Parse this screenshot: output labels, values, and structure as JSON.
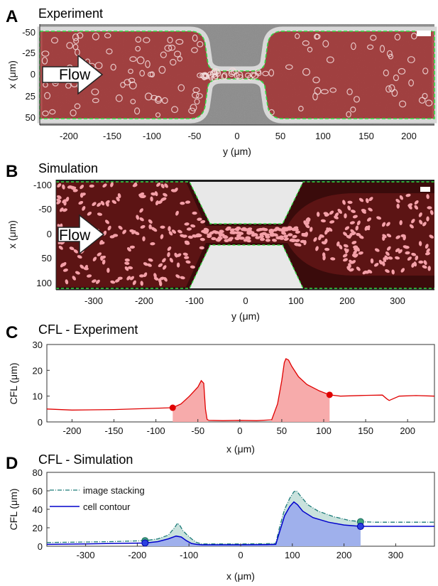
{
  "colors": {
    "channel_red": "#a52a2a",
    "sim_fluid": "#5c1414",
    "sim_cell": "#f4a0a8",
    "experiment_line": "#e00000",
    "experiment_fill": "#f7a6a6",
    "stacking_line": "#1b7a78",
    "stacking_fill": "#c9e2dd",
    "contour_line": "#0000cc",
    "contour_fill": "#9fb0ec",
    "boundary_green": "#33dd44"
  },
  "panels": {
    "A": {
      "letter": "A",
      "title": "Experiment",
      "flow_label": "Flow",
      "xlabel": "y (μm)",
      "ylabel": "x (μm)",
      "xticks": [
        "-200",
        "-150",
        "-100",
        "-50",
        "0",
        "50",
        "100",
        "150",
        "200"
      ],
      "yticks": [
        "-50",
        "-25",
        "0",
        "25",
        "50"
      ]
    },
    "B": {
      "letter": "B",
      "title": "Simulation",
      "flow_label": "Flow",
      "xlabel": "y (μm)",
      "ylabel": "x (μm)",
      "xticks": [
        "-300",
        "-200",
        "-100",
        "0",
        "100",
        "200",
        "300"
      ],
      "yticks": [
        "-100",
        "-50",
        "0",
        "50",
        "100"
      ]
    },
    "C": {
      "letter": "C",
      "title": "CFL - Experiment",
      "xlabel": "x (μm)",
      "ylabel": "CFL (μm)",
      "xticks": [
        "-200",
        "-150",
        "-100",
        "-50",
        "0",
        "50",
        "100",
        "150",
        "200"
      ],
      "yticks": [
        "0",
        "10",
        "20",
        "30"
      ]
    },
    "D": {
      "letter": "D",
      "title": "CFL - Simulation",
      "xlabel": "x (μm)",
      "ylabel": "CFL (μm)",
      "xticks": [
        "-300",
        "-200",
        "-100",
        "0",
        "100",
        "200",
        "300"
      ],
      "yticks": [
        "0",
        "20",
        "40",
        "60",
        "80"
      ],
      "legend": [
        "image stacking",
        "cell contour"
      ]
    }
  },
  "chart_data": [
    {
      "panel": "C",
      "type": "line",
      "title": "CFL - Experiment",
      "xlabel": "x (μm)",
      "ylabel": "CFL (μm)",
      "xlim": [
        -230,
        232
      ],
      "ylim": [
        0,
        30
      ],
      "series": [
        {
          "x": [
            -230,
            -200,
            -150,
            -110,
            -90,
            -80,
            -70,
            -60,
            -50,
            -46,
            -43,
            -41,
            -39,
            -37,
            -20,
            0,
            20,
            38,
            45,
            50,
            53,
            55,
            58,
            62,
            70,
            80,
            95,
            107,
            120,
            150,
            170,
            175,
            178,
            190,
            210,
            232
          ],
          "y": [
            5.0,
            4.6,
            4.8,
            5.2,
            5.4,
            5.5,
            7.0,
            10.0,
            13.5,
            16.0,
            15.0,
            5.0,
            1.0,
            0.6,
            0.5,
            0.6,
            0.5,
            0.8,
            7.0,
            16.0,
            23.0,
            24.5,
            24.0,
            21.5,
            17.5,
            14.5,
            12.0,
            10.5,
            10.0,
            10.3,
            10.4,
            9.0,
            8.3,
            10.0,
            10.2,
            10.0
          ]
        }
      ],
      "shaded_regions": [
        [
          -80,
          -38
        ],
        [
          38,
          107
        ]
      ],
      "markers": [
        {
          "x": -80,
          "y": 5.5
        },
        {
          "x": 107,
          "y": 10.5
        }
      ]
    },
    {
      "panel": "D",
      "type": "line",
      "title": "CFL - Simulation",
      "xlabel": "x (μm)",
      "ylabel": "CFL (μm)",
      "xlim": [
        -375,
        375
      ],
      "ylim": [
        0,
        80
      ],
      "legend_position": "top-left",
      "series": [
        {
          "name": "image stacking",
          "style": "dash-dot",
          "x": [
            -375,
            -300,
            -250,
            -185,
            -160,
            -140,
            -128,
            -122,
            -117,
            -112,
            -105,
            -95,
            -85,
            -75,
            -50,
            0,
            50,
            68,
            75,
            85,
            95,
            103,
            108,
            115,
            130,
            150,
            180,
            210,
            232,
            260,
            300,
            375
          ],
          "y": [
            4.0,
            4.5,
            5.0,
            6.0,
            8.0,
            12.0,
            20.0,
            25.0,
            22.0,
            17.0,
            13.0,
            8.0,
            4.0,
            2.5,
            2.5,
            2.5,
            2.8,
            3.0,
            20.0,
            40.0,
            52.0,
            59.0,
            60.0,
            55.0,
            45.0,
            38.0,
            32.0,
            28.0,
            26.5,
            26.0,
            26.0,
            26.0
          ]
        },
        {
          "name": "cell contour",
          "style": "solid",
          "x": [
            -375,
            -300,
            -250,
            -185,
            -160,
            -140,
            -125,
            -115,
            -105,
            -95,
            -85,
            -75,
            -50,
            0,
            50,
            68,
            75,
            85,
            95,
            103,
            110,
            120,
            140,
            170,
            200,
            232,
            260,
            300,
            375
          ],
          "y": [
            2.0,
            2.5,
            3.0,
            3.5,
            5.0,
            8.0,
            11.0,
            10.0,
            6.0,
            3.0,
            2.0,
            1.5,
            1.5,
            1.5,
            1.8,
            2.0,
            15.0,
            33.0,
            43.0,
            48.0,
            45.0,
            38.0,
            31.0,
            26.0,
            23.0,
            21.5,
            21.5,
            21.5,
            21.5
          ]
        }
      ],
      "shaded_regions": [
        [
          -185,
          232
        ]
      ],
      "markers": [
        {
          "series": "image stacking",
          "x": -185,
          "y": 6.0
        },
        {
          "series": "image stacking",
          "x": 232,
          "y": 26.5
        },
        {
          "series": "cell contour",
          "x": -185,
          "y": 3.5
        },
        {
          "series": "cell contour",
          "x": 232,
          "y": 21.5
        }
      ]
    }
  ]
}
